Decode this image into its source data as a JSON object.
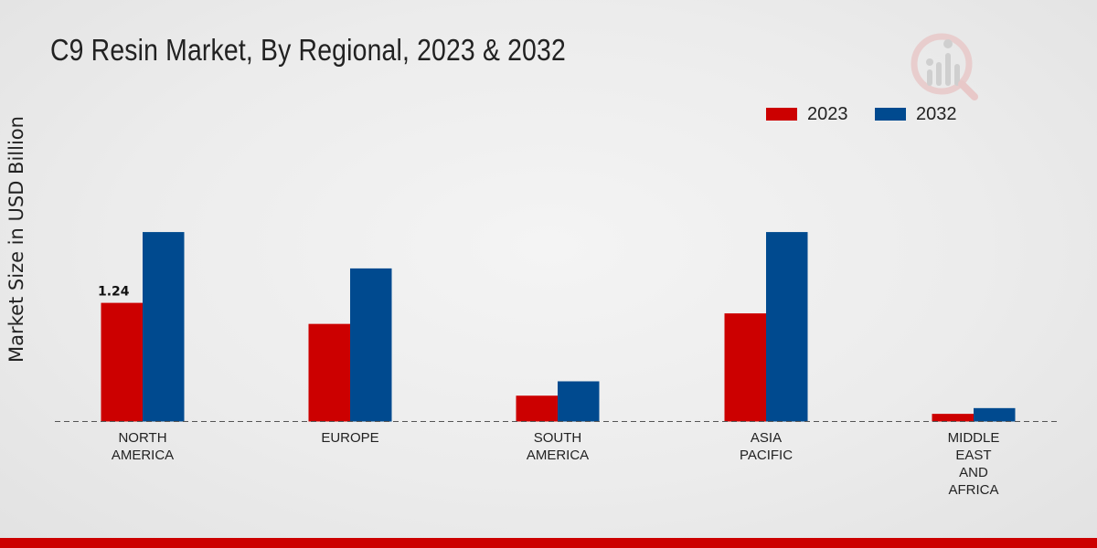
{
  "chart_data": {
    "type": "bar",
    "title": "C9 Resin Market, By Regional, 2023 & 2032",
    "ylabel": "Market Size in USD Billion",
    "xlabel": "",
    "categories": [
      [
        "NORTH",
        "AMERICA"
      ],
      [
        "EUROPE"
      ],
      [
        "SOUTH",
        "AMERICA"
      ],
      [
        "ASIA",
        "PACIFIC"
      ],
      [
        "MIDDLE",
        "EAST",
        "AND",
        "AFRICA"
      ]
    ],
    "series": [
      {
        "name": "2023",
        "color": "#cc0000",
        "values": [
          1.24,
          1.02,
          0.27,
          1.13,
          0.08
        ]
      },
      {
        "name": "2032",
        "color": "#004a8f",
        "values": [
          1.98,
          1.6,
          0.42,
          1.98,
          0.14
        ]
      }
    ],
    "annotations": [
      {
        "series": 0,
        "category": 0,
        "text": "1.24"
      }
    ],
    "ylim": [
      0,
      4.2
    ],
    "grid": false,
    "legend_position": "top-right"
  },
  "footer": {
    "bar_color": "#cc0000"
  },
  "watermark_icon": "market-research-logo-icon"
}
